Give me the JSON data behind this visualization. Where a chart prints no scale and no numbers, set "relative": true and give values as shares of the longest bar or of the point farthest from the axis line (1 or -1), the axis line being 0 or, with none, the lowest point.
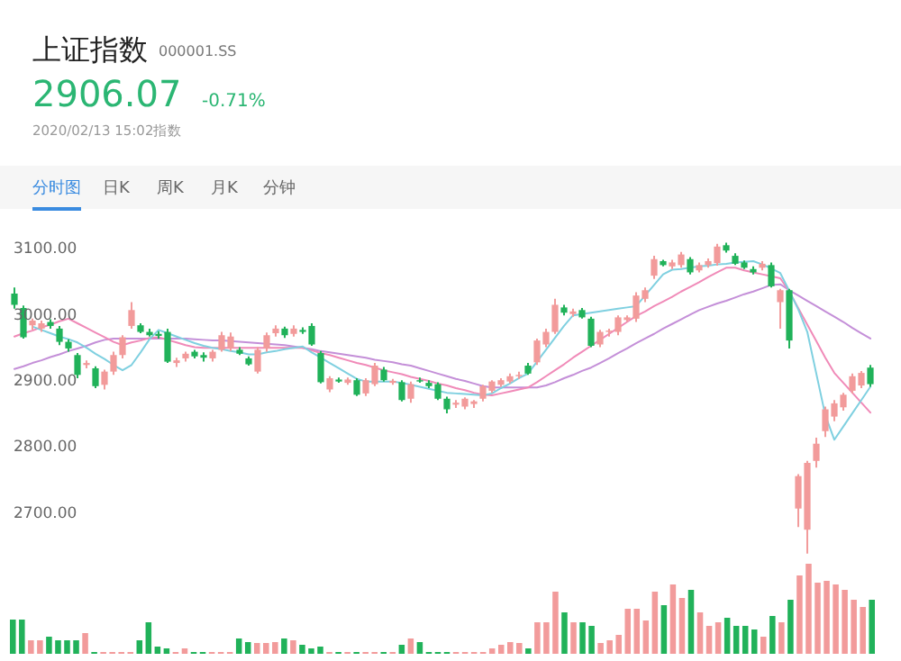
{
  "chart_data": [
    {
      "type": "other",
      "title": "上证指数",
      "annotations": [
        "000001.SS",
        "2906.07",
        "-0.71%",
        "2020/02/13 15:02指数",
        "分时图",
        "日K",
        "周K",
        "月K",
        "分钟"
      ]
    },
    {
      "type": "candlestick",
      "categories": [
        null,
        null,
        null,
        null,
        null,
        null,
        null,
        null,
        null,
        null,
        null,
        null,
        null,
        null,
        null,
        null,
        null,
        null,
        null,
        null,
        null,
        null,
        null,
        null,
        null,
        null,
        null,
        null,
        null,
        null,
        null,
        null,
        null,
        null,
        null,
        null,
        null,
        null,
        null,
        null,
        null,
        null,
        null,
        null,
        null,
        null,
        null,
        null,
        null,
        null,
        null,
        null,
        null,
        null,
        null,
        null,
        null,
        null,
        null,
        null,
        null,
        null,
        null,
        null,
        null,
        null,
        null,
        null,
        null,
        null,
        null,
        null,
        null,
        null,
        null,
        null,
        null,
        null,
        null,
        null,
        null,
        null,
        null,
        null,
        null,
        null,
        null,
        null,
        null,
        null,
        null,
        null,
        null,
        null,
        null,
        null
      ],
      "ohlc": [
        [
          3043,
          3052,
          3020,
          3026
        ],
        [
          3021,
          3025,
          2975,
          2977
        ],
        [
          2995,
          3005,
          2988,
          3002
        ],
        [
          2990,
          3002,
          2985,
          2998
        ],
        [
          3000,
          3004,
          2990,
          2994
        ],
        [
          2990,
          2994,
          2965,
          2970
        ],
        [
          2970,
          2974,
          2955,
          2960
        ],
        [
          2950,
          2953,
          2915,
          2920
        ],
        [
          2935,
          2942,
          2930,
          2938
        ],
        [
          2930,
          2933,
          2900,
          2903
        ],
        [
          2905,
          2928,
          2898,
          2925
        ],
        [
          2925,
          2955,
          2920,
          2950
        ],
        [
          2950,
          2980,
          2945,
          2977
        ],
        [
          2994,
          3030,
          2990,
          3018
        ],
        [
          2995,
          2998,
          2983,
          2985
        ],
        [
          2985,
          2990,
          2978,
          2980
        ],
        [
          2982,
          2986,
          2975,
          2979
        ],
        [
          2985,
          2990,
          2938,
          2940
        ],
        [
          2938,
          2946,
          2932,
          2942
        ],
        [
          2945,
          2955,
          2940,
          2952
        ],
        [
          2955,
          2958,
          2945,
          2948
        ],
        [
          2950,
          2954,
          2940,
          2946
        ],
        [
          2945,
          2958,
          2940,
          2955
        ],
        [
          2958,
          2985,
          2955,
          2980
        ],
        [
          2960,
          2984,
          2956,
          2978
        ],
        [
          2958,
          2962,
          2950,
          2952
        ],
        [
          2945,
          2948,
          2934,
          2936
        ],
        [
          2925,
          2962,
          2922,
          2958
        ],
        [
          2960,
          2984,
          2955,
          2980
        ],
        [
          2983,
          2995,
          2978,
          2990
        ],
        [
          2990,
          2993,
          2976,
          2980
        ],
        [
          2982,
          2995,
          2978,
          2990
        ],
        [
          2988,
          2992,
          2982,
          2985
        ],
        [
          2994,
          2998,
          2964,
          2966
        ],
        [
          2953,
          2956,
          2907,
          2909
        ],
        [
          2898,
          2918,
          2894,
          2915
        ],
        [
          2913,
          2916,
          2908,
          2910
        ],
        [
          2908,
          2916,
          2905,
          2913
        ],
        [
          2912,
          2915,
          2888,
          2890
        ],
        [
          2892,
          2915,
          2888,
          2912
        ],
        [
          2906,
          2938,
          2903,
          2934
        ],
        [
          2928,
          2932,
          2910,
          2912
        ],
        [
          2908,
          2914,
          2905,
          2911
        ],
        [
          2909,
          2912,
          2880,
          2882
        ],
        [
          2884,
          2910,
          2878,
          2906
        ],
        [
          2912,
          2916,
          2908,
          2910
        ],
        [
          2908,
          2912,
          2900,
          2903
        ],
        [
          2906,
          2909,
          2882,
          2884
        ],
        [
          2884,
          2887,
          2862,
          2868
        ],
        [
          2875,
          2882,
          2870,
          2878
        ],
        [
          2872,
          2886,
          2868,
          2884
        ],
        [
          2876,
          2882,
          2870,
          2880
        ],
        [
          2884,
          2905,
          2880,
          2903
        ],
        [
          2896,
          2912,
          2893,
          2910
        ],
        [
          2905,
          2915,
          2902,
          2912
        ],
        [
          2910,
          2922,
          2907,
          2918
        ],
        [
          2918,
          2925,
          2914,
          2920
        ],
        [
          2934,
          2938,
          2920,
          2922
        ],
        [
          2939,
          2975,
          2935,
          2972
        ],
        [
          2966,
          2990,
          2962,
          2985
        ],
        [
          2985,
          3035,
          2982,
          3026
        ],
        [
          3022,
          3026,
          3010,
          3014
        ],
        [
          3012,
          3020,
          3008,
          3016
        ],
        [
          3018,
          3021,
          3005,
          3007
        ],
        [
          3005,
          3008,
          2962,
          2964
        ],
        [
          2966,
          2988,
          2962,
          2985
        ],
        [
          2985,
          2990,
          2978,
          2987
        ],
        [
          2985,
          3010,
          2980,
          3007
        ],
        [
          3003,
          3010,
          3000,
          3007
        ],
        [
          3005,
          3045,
          3000,
          3040
        ],
        [
          3035,
          3052,
          3030,
          3048
        ],
        [
          3070,
          3100,
          3065,
          3095
        ],
        [
          3092,
          3094,
          3084,
          3086
        ],
        [
          3084,
          3094,
          3080,
          3090
        ],
        [
          3086,
          3106,
          3082,
          3102
        ],
        [
          3095,
          3098,
          3072,
          3075
        ],
        [
          3078,
          3090,
          3075,
          3086
        ],
        [
          3086,
          3096,
          3082,
          3092
        ],
        [
          3089,
          3118,
          3085,
          3114
        ],
        [
          3116,
          3120,
          3105,
          3108
        ],
        [
          3100,
          3104,
          3086,
          3088
        ],
        [
          3090,
          3093,
          3080,
          3082
        ],
        [
          3080,
          3084,
          3072,
          3075
        ],
        [
          3082,
          3092,
          3078,
          3088
        ],
        [
          3086,
          3090,
          3052,
          3054
        ],
        [
          3030,
          3050,
          2990,
          3048
        ],
        [
          3048,
          3050,
          2960,
          2972
        ],
        [
          2718,
          2770,
          2690,
          2767
        ],
        [
          2686,
          2790,
          2650,
          2787
        ],
        [
          2790,
          2825,
          2780,
          2816
        ],
        [
          2835,
          2872,
          2826,
          2868
        ],
        [
          2857,
          2882,
          2850,
          2877
        ],
        [
          2871,
          2893,
          2866,
          2890
        ],
        [
          2896,
          2922,
          2892,
          2918
        ],
        [
          2904,
          2926,
          2900,
          2923
        ],
        [
          2931,
          2935,
          2902,
          2906
        ]
      ],
      "colors": [
        "#21b25a",
        "#21b25a",
        "#f29b9b",
        "#f29b9b",
        "#21b25a",
        "#21b25a",
        "#21b25a",
        "#21b25a",
        "#f29b9b",
        "#21b25a",
        "#f29b9b",
        "#f29b9b",
        "#f29b9b",
        "#f29b9b",
        "#21b25a",
        "#21b25a",
        "#21b25a",
        "#21b25a",
        "#f29b9b",
        "#f29b9b",
        "#21b25a",
        "#21b25a",
        "#f29b9b",
        "#f29b9b",
        "#f29b9b",
        "#21b25a",
        "#21b25a",
        "#f29b9b",
        "#f29b9b",
        "#f29b9b",
        "#21b25a",
        "#f29b9b",
        "#21b25a",
        "#21b25a",
        "#21b25a",
        "#f29b9b",
        "#21b25a",
        "#f29b9b",
        "#21b25a",
        "#f29b9b",
        "#f29b9b",
        "#21b25a",
        "#f29b9b",
        "#21b25a",
        "#f29b9b",
        "#21b25a",
        "#21b25a",
        "#21b25a",
        "#21b25a",
        "#f29b9b",
        "#f29b9b",
        "#f29b9b",
        "#f29b9b",
        "#f29b9b",
        "#f29b9b",
        "#f29b9b",
        "#f29b9b",
        "#21b25a",
        "#f29b9b",
        "#f29b9b",
        "#f29b9b",
        "#21b25a",
        "#f29b9b",
        "#21b25a",
        "#21b25a",
        "#f29b9b",
        "#f29b9b",
        "#f29b9b",
        "#f29b9b",
        "#f29b9b",
        "#f29b9b",
        "#f29b9b",
        "#21b25a",
        "#f29b9b",
        "#f29b9b",
        "#21b25a",
        "#f29b9b",
        "#f29b9b",
        "#f29b9b",
        "#21b25a",
        "#21b25a",
        "#21b25a",
        "#21b25a",
        "#f29b9b",
        "#21b25a",
        "#f29b9b",
        "#21b25a",
        "#f29b9b",
        "#f29b9b",
        "#f29b9b",
        "#f29b9b",
        "#f29b9b",
        "#f29b9b",
        "#f29b9b",
        "#f29b9b",
        "#21b25a"
      ],
      "series": [
        {
          "type": "line",
          "color": "#c48fd8",
          "values": [
            2929,
            2933,
            2938,
            2942,
            2947,
            2951,
            2956,
            2960,
            2964,
            2969,
            2973,
            2975,
            2975,
            2975,
            2975,
            2975,
            2975,
            2975,
            2975,
            2975,
            2974,
            2973,
            2972,
            2972,
            2971,
            2970,
            2969,
            2968,
            2967,
            2966,
            2965,
            2963,
            2961,
            2959,
            2956,
            2954,
            2952,
            2950,
            2948,
            2946,
            2943,
            2941,
            2939,
            2936,
            2934,
            2930,
            2926,
            2922,
            2918,
            2914,
            2911,
            2907,
            2903,
            2901,
            2901,
            2901,
            2901,
            2901,
            2901,
            2904,
            2909,
            2915,
            2920,
            2926,
            2931,
            2938,
            2945,
            2953,
            2960,
            2968,
            2975,
            2982,
            2990,
            2997,
            3004,
            3011,
            3018,
            3023,
            3028,
            3032,
            3037,
            3042,
            3046,
            3051,
            3056,
            3057,
            3048,
            3040,
            3032,
            3024,
            3016,
            3008,
            3000,
            2991,
            2983,
            2975
          ]
        },
        {
          "type": "line",
          "color": "#f08ab8",
          "values": [
            2978,
            2983,
            2987,
            2992,
            2996,
            3001,
            3005,
            2998,
            2991,
            2984,
            2977,
            2970,
            2965,
            2969,
            2972,
            2976,
            2977,
            2973,
            2969,
            2965,
            2962,
            2961,
            2961,
            2961,
            2961,
            2961,
            2961,
            2961,
            2961,
            2961,
            2961,
            2961,
            2961,
            2957,
            2953,
            2950,
            2946,
            2942,
            2938,
            2935,
            2931,
            2927,
            2924,
            2921,
            2917,
            2914,
            2911,
            2907,
            2904,
            2900,
            2897,
            2893,
            2890,
            2889,
            2892,
            2895,
            2898,
            2901,
            2909,
            2918,
            2927,
            2936,
            2946,
            2955,
            2964,
            2973,
            2982,
            2991,
            3000,
            3009,
            3016,
            3024,
            3031,
            3038,
            3046,
            3053,
            3060,
            3068,
            3075,
            3082,
            3082,
            3078,
            3075,
            3072,
            3069,
            3066,
            3046,
            3021,
            2996,
            2971,
            2946,
            2923,
            2908,
            2893,
            2878,
            2863
          ]
        },
        {
          "type": "line",
          "color": "#7fd0e0",
          "values": [
            null,
            null,
            2993,
            2988,
            2983,
            2978,
            2974,
            2969,
            2961,
            2952,
            2944,
            2935,
            2927,
            2935,
            2954,
            2974,
            2988,
            2983,
            2978,
            2973,
            2968,
            2964,
            2961,
            2959,
            2956,
            2954,
            2951,
            2951,
            2954,
            2956,
            2959,
            2961,
            2963,
            2954,
            2946,
            2938,
            2930,
            2922,
            2914,
            2910,
            2910,
            2910,
            2910,
            2908,
            2905,
            2902,
            2899,
            2896,
            2893,
            2892,
            2891,
            2890,
            2889,
            2892,
            2900,
            2907,
            2915,
            2922,
            2940,
            2958,
            2976,
            2994,
            3010,
            3012,
            3014,
            3016,
            3018,
            3020,
            3022,
            3024,
            3040,
            3056,
            3072,
            3079,
            3080,
            3082,
            3084,
            3085,
            3087,
            3088,
            3090,
            3091,
            3092,
            3087,
            3081,
            3074,
            3047,
            3019,
            2985,
            2922,
            2859,
            2822,
            2842,
            2862,
            2882,
            2902
          ]
        }
      ],
      "ylim": [
        2640,
        3160
      ],
      "yticks": [
        {
          "value": 2700,
          "label": "2700.00"
        },
        {
          "value": 2800,
          "label": "2800.00"
        },
        {
          "value": 2900,
          "label": "2900.00"
        },
        {
          "value": 3000,
          "label": "3000.00"
        },
        {
          "value": 3100,
          "label": "3100.00"
        }
      ],
      "tick_labels": "y"
    },
    {
      "type": "bar",
      "relative": true,
      "categories": [
        null,
        null,
        null,
        null,
        null,
        null,
        null,
        null,
        null,
        null,
        null,
        null,
        null,
        null,
        null,
        null,
        null,
        null,
        null,
        null,
        null,
        null,
        null,
        null,
        null,
        null,
        null,
        null,
        null,
        null,
        null,
        null,
        null,
        null,
        null,
        null,
        null,
        null,
        null,
        null,
        null,
        null,
        null,
        null,
        null,
        null,
        null,
        null,
        null,
        null,
        null,
        null,
        null,
        null,
        null,
        null,
        null,
        null,
        null,
        null,
        null,
        null,
        null,
        null,
        null,
        null,
        null,
        null,
        null,
        null,
        null,
        null,
        null,
        null,
        null,
        null,
        null,
        null,
        null,
        null,
        null,
        null,
        null,
        null,
        null,
        null,
        null,
        null,
        null,
        null,
        null,
        null,
        null,
        null,
        null,
        null
      ],
      "values": [
        0.38,
        0.38,
        0.15,
        0.15,
        0.19,
        0.15,
        0.15,
        0.15,
        0.23,
        0.02,
        0.02,
        0.02,
        0.02,
        0.02,
        0.15,
        0.35,
        0.08,
        0.06,
        0.02,
        0.06,
        0.02,
        0.02,
        0.02,
        0.02,
        0.02,
        0.17,
        0.13,
        0.12,
        0.12,
        0.13,
        0.17,
        0.15,
        0.1,
        0.06,
        0.08,
        0.02,
        0.02,
        0.02,
        0.02,
        0.02,
        0.02,
        0.02,
        0.02,
        0.1,
        0.17,
        0.13,
        0.02,
        0.02,
        0.02,
        0.02,
        0.02,
        0.02,
        0.02,
        0.06,
        0.1,
        0.13,
        0.12,
        0.06,
        0.35,
        0.35,
        0.69,
        0.46,
        0.35,
        0.35,
        0.31,
        0.12,
        0.15,
        0.21,
        0.5,
        0.5,
        0.37,
        0.69,
        0.54,
        0.77,
        0.62,
        0.71,
        0.46,
        0.31,
        0.35,
        0.4,
        0.31,
        0.31,
        0.27,
        0.19,
        0.42,
        0.35,
        0.6,
        0.87,
        1,
        0.79,
        0.81,
        0.77,
        0.71,
        0.6,
        0.52,
        0.6
      ],
      "colors": [
        "#21b25a",
        "#21b25a",
        "#f29b9b",
        "#f29b9b",
        "#21b25a",
        "#21b25a",
        "#21b25a",
        "#21b25a",
        "#f29b9b",
        "#21b25a",
        "#f29b9b",
        "#f29b9b",
        "#f29b9b",
        "#f29b9b",
        "#21b25a",
        "#21b25a",
        "#21b25a",
        "#21b25a",
        "#f29b9b",
        "#f29b9b",
        "#21b25a",
        "#21b25a",
        "#f29b9b",
        "#f29b9b",
        "#f29b9b",
        "#21b25a",
        "#21b25a",
        "#f29b9b",
        "#f29b9b",
        "#f29b9b",
        "#21b25a",
        "#f29b9b",
        "#21b25a",
        "#21b25a",
        "#21b25a",
        "#f29b9b",
        "#21b25a",
        "#f29b9b",
        "#21b25a",
        "#f29b9b",
        "#f29b9b",
        "#21b25a",
        "#f29b9b",
        "#21b25a",
        "#f29b9b",
        "#21b25a",
        "#21b25a",
        "#21b25a",
        "#21b25a",
        "#f29b9b",
        "#f29b9b",
        "#f29b9b",
        "#f29b9b",
        "#f29b9b",
        "#f29b9b",
        "#f29b9b",
        "#f29b9b",
        "#21b25a",
        "#f29b9b",
        "#f29b9b",
        "#f29b9b",
        "#21b25a",
        "#f29b9b",
        "#21b25a",
        "#21b25a",
        "#f29b9b",
        "#f29b9b",
        "#f29b9b",
        "#f29b9b",
        "#f29b9b",
        "#f29b9b",
        "#f29b9b",
        "#21b25a",
        "#f29b9b",
        "#f29b9b",
        "#21b25a",
        "#f29b9b",
        "#f29b9b",
        "#f29b9b",
        "#21b25a",
        "#21b25a",
        "#21b25a",
        "#21b25a",
        "#f29b9b",
        "#21b25a",
        "#f29b9b",
        "#21b25a",
        "#f29b9b",
        "#f29b9b",
        "#f29b9b",
        "#f29b9b",
        "#f29b9b",
        "#f29b9b",
        "#f29b9b",
        "#f29b9b",
        "#21b25a"
      ]
    }
  ]
}
